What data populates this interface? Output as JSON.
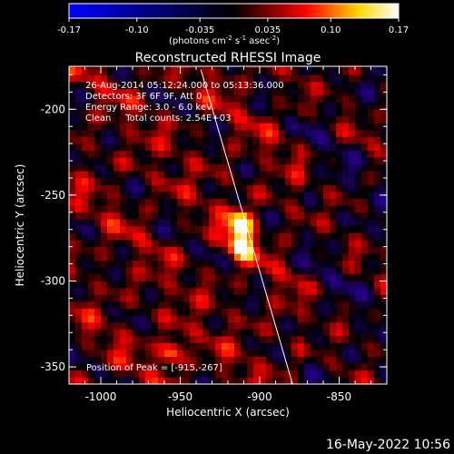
{
  "colorbar": {
    "ticks": [
      "-0.17",
      "-0.10",
      "-0.035",
      "0.035",
      "0.10",
      "0.17"
    ],
    "units": "(photons cm",
    "units_exp1": "-2",
    "units_s": " s",
    "units_exp2": "-1",
    "units_asec": " asec",
    "units_exp3": "-2",
    "units_close": ")",
    "range": [
      -0.17,
      0.17
    ],
    "colors": [
      "#0000ff",
      "#000000",
      "#ff0000",
      "#ffff00",
      "#ffffff"
    ]
  },
  "chart_data": {
    "type": "heatmap",
    "title": "Reconstructed RHESSI Image",
    "xlabel": "Heliocentric X (arcsec)",
    "ylabel": "Heliocentric Y (arcsec)",
    "xlim": [
      -1020,
      -820
    ],
    "ylim": [
      -360,
      -175
    ],
    "x_ticks": [
      -1000,
      -950,
      -900,
      -850
    ],
    "y_ticks": [
      -350,
      -300,
      -250,
      -200
    ],
    "x_tick_labels": [
      "-1000",
      "-950",
      "-900",
      "-850"
    ],
    "y_tick_labels": [
      "-350",
      "-300",
      "-250",
      "-200"
    ],
    "limb_line": [
      [
        -937,
        -177
      ],
      [
        -879,
        -361
      ]
    ],
    "peak_marker": [
      -915,
      -267
    ],
    "bright_sources": [
      {
        "x": -912,
        "y": -267,
        "value": 0.17
      },
      {
        "x": -912,
        "y": -280,
        "value": 0.14
      },
      {
        "x": -955,
        "y": -341,
        "value": 0.13
      }
    ]
  },
  "info": {
    "line1": "26-Aug-2014 05:12:24.000 to 05:13:36.000",
    "line2": "Detectors: 3F 6F 9F, Att 0",
    "line3": "Energy Range: 3.0 - 6.0 keV",
    "line4": "Clean     Total counts: 2.54E+03"
  },
  "peak_label": "Position of Peak = [-915,-267]",
  "timestamp": "16-May-2022 10:56"
}
